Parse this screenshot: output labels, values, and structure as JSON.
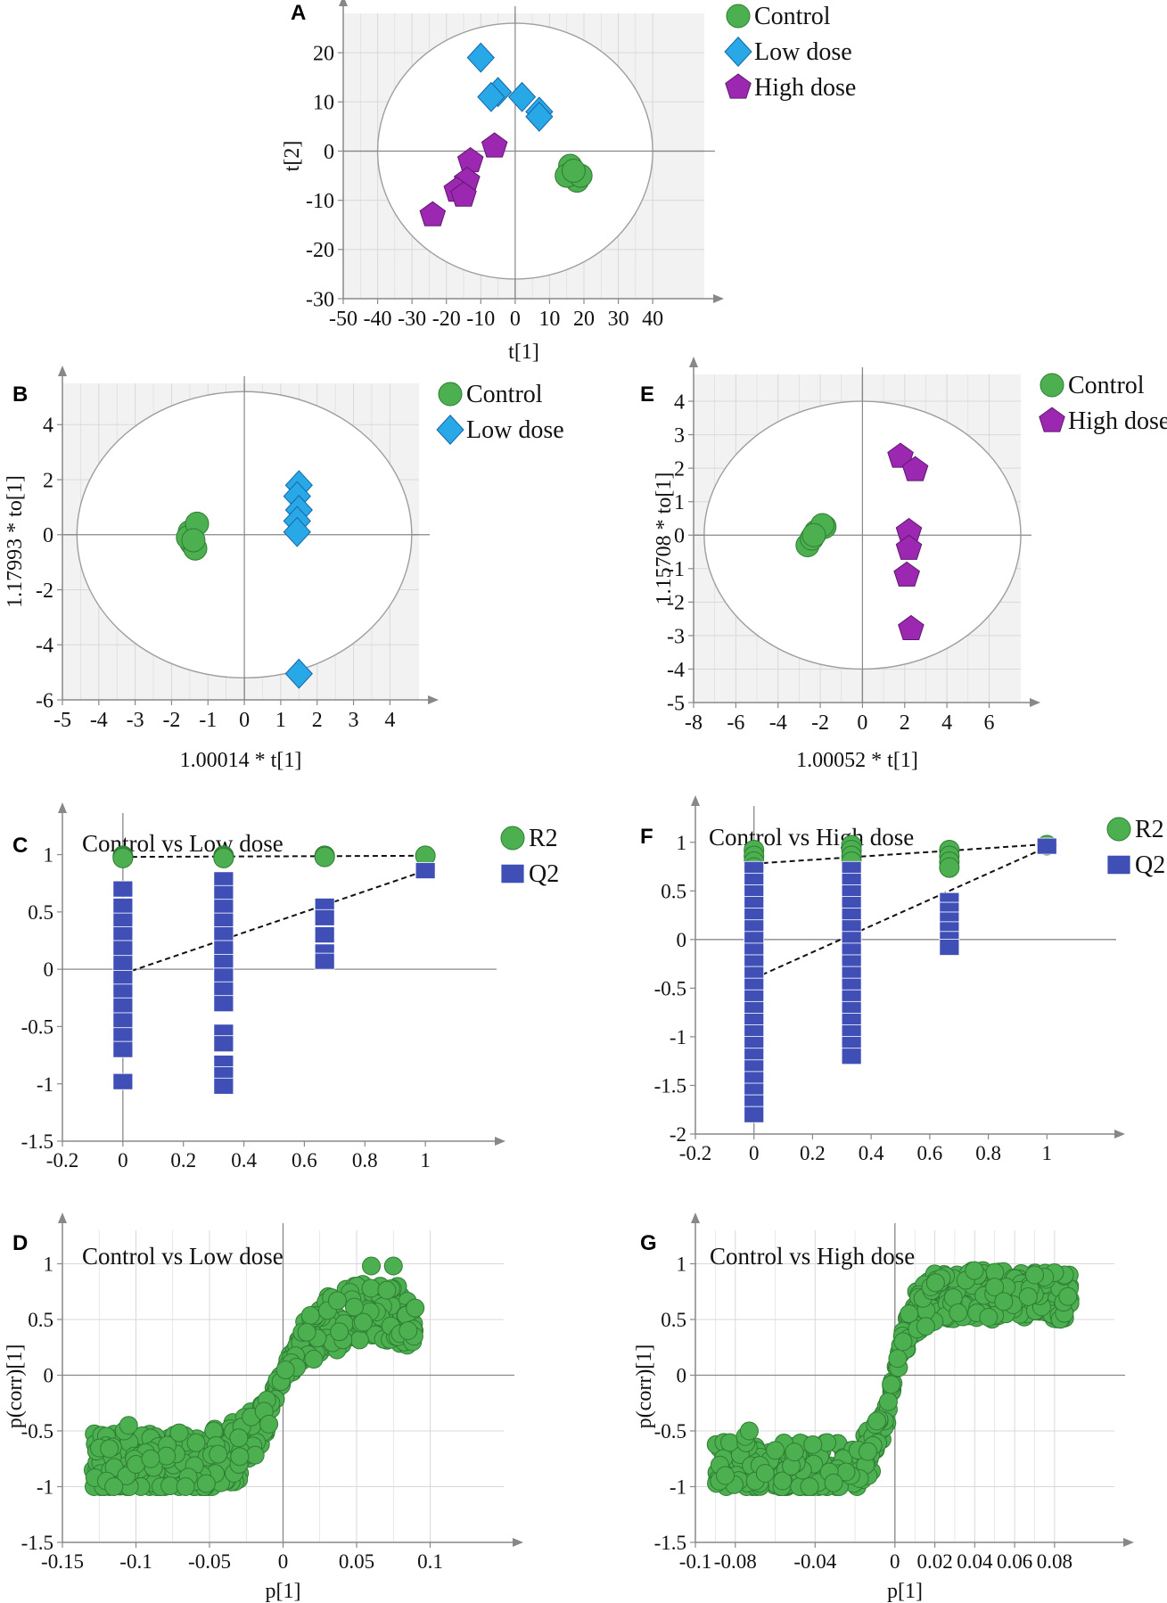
{
  "colors": {
    "control": "#4caf50",
    "control_stroke": "#2e7d32",
    "low": "#29a8e8",
    "low_stroke": "#1565a8",
    "high": "#9c27b0",
    "high_stroke": "#5e1a6e",
    "r2": "#4caf50",
    "q2": "#3f4fb5",
    "q2_stroke": "#28307a",
    "grid": "#d9d9d9",
    "bg": "#f2f2f2",
    "axis": "#888888",
    "ellipse": "#9e9e9e"
  },
  "chart_data": [
    {
      "id": "A",
      "type": "scatter",
      "letter": "A",
      "title": "",
      "xlabel": "t[1]",
      "ylabel": "t[2]",
      "xlim": [
        -50,
        55
      ],
      "ylim": [
        -30,
        28
      ],
      "xticks": [
        -50,
        -40,
        -30,
        -20,
        -10,
        0,
        10,
        20,
        30,
        40
      ],
      "yticks": [
        -30,
        -20,
        -10,
        0,
        10,
        20
      ],
      "ellipse": {
        "rx": 40,
        "ry": 26
      },
      "legend": [
        {
          "label": "Control",
          "marker": "circle",
          "color": "control"
        },
        {
          "label": "Low dose",
          "marker": "diamond",
          "color": "low"
        },
        {
          "label": "High dose",
          "marker": "pentagon",
          "color": "high"
        }
      ],
      "series": [
        {
          "name": "Control",
          "marker": "circle",
          "color": "control",
          "points": [
            [
              16,
              -3
            ],
            [
              17,
              -5
            ],
            [
              18,
              -6
            ],
            [
              15,
              -5
            ],
            [
              19,
              -5
            ],
            [
              17,
              -4
            ]
          ]
        },
        {
          "name": "Low dose",
          "marker": "diamond",
          "color": "low",
          "points": [
            [
              -10,
              19
            ],
            [
              -5,
              12
            ],
            [
              -7,
              11
            ],
            [
              2,
              11
            ],
            [
              7,
              8
            ],
            [
              7,
              7
            ]
          ]
        },
        {
          "name": "High dose",
          "marker": "pentagon",
          "color": "high",
          "points": [
            [
              -6,
              1
            ],
            [
              -13,
              -2
            ],
            [
              -14,
              -6
            ],
            [
              -17,
              -8
            ],
            [
              -15,
              -9
            ],
            [
              -24,
              -13
            ]
          ]
        }
      ]
    },
    {
      "id": "B",
      "type": "scatter",
      "letter": "B",
      "title": "",
      "xlabel": "1.00014 * t[1]",
      "ylabel": "1.17993 * to[1]",
      "xlim": [
        -5,
        4.8
      ],
      "ylim": [
        -6,
        5.5
      ],
      "xticks": [
        -5,
        -4,
        -3,
        -2,
        -1,
        0,
        1,
        2,
        3,
        4
      ],
      "yticks": [
        -6,
        -4,
        -2,
        0,
        2,
        4
      ],
      "ellipse": {
        "rx": 4.6,
        "ry": 5.2
      },
      "legend": [
        {
          "label": "Control",
          "marker": "circle",
          "color": "control"
        },
        {
          "label": "Low dose",
          "marker": "diamond",
          "color": "low"
        }
      ],
      "series": [
        {
          "name": "Control",
          "marker": "circle",
          "color": "control",
          "points": [
            [
              -1.45,
              -0.3
            ],
            [
              -1.5,
              0.1
            ],
            [
              -1.35,
              -0.5
            ],
            [
              -1.55,
              -0.1
            ],
            [
              -1.3,
              0.4
            ],
            [
              -1.4,
              -0.2
            ]
          ]
        },
        {
          "name": "Low dose",
          "marker": "diamond",
          "color": "low",
          "points": [
            [
              1.5,
              1.8
            ],
            [
              1.45,
              1.4
            ],
            [
              1.5,
              0.9
            ],
            [
              1.45,
              0.5
            ],
            [
              1.45,
              0.1
            ],
            [
              1.5,
              -5.05
            ]
          ]
        }
      ]
    },
    {
      "id": "E",
      "type": "scatter",
      "letter": "E",
      "title": "",
      "xlabel": "1.00052 * t[1]",
      "ylabel": "1.15708 * to[1]",
      "xlim": [
        -8,
        7.5
      ],
      "ylim": [
        -5,
        4.8
      ],
      "xticks": [
        -8,
        -6,
        -4,
        -2,
        0,
        2,
        4,
        6
      ],
      "yticks": [
        -5,
        -4,
        -3,
        -2,
        -1,
        0,
        1,
        2,
        3,
        4
      ],
      "ellipse": {
        "rx": 7.5,
        "ry": 4.0
      },
      "legend": [
        {
          "label": "Control",
          "marker": "circle",
          "color": "control"
        },
        {
          "label": "High dose",
          "marker": "pentagon",
          "color": "high"
        }
      ],
      "series": [
        {
          "name": "Control",
          "marker": "circle",
          "color": "control",
          "points": [
            [
              -2.6,
              -0.3
            ],
            [
              -2.2,
              0.1
            ],
            [
              -1.8,
              0.25
            ],
            [
              -2.4,
              -0.1
            ],
            [
              -1.9,
              0.3
            ],
            [
              -2.3,
              0.0
            ]
          ]
        },
        {
          "name": "High dose",
          "marker": "pentagon",
          "color": "high",
          "points": [
            [
              1.8,
              2.35
            ],
            [
              2.5,
              1.95
            ],
            [
              2.2,
              0.1
            ],
            [
              2.2,
              -0.4
            ],
            [
              2.1,
              -1.2
            ],
            [
              2.3,
              -2.8
            ]
          ]
        }
      ]
    },
    {
      "id": "C",
      "type": "scatter",
      "letter": "C",
      "title": "Control vs Low dose",
      "xlabel": "",
      "ylabel": "",
      "xlim": [
        -0.2,
        1.2
      ],
      "ylim": [
        -1.5,
        1.3
      ],
      "xticks": [
        -0.2,
        0,
        0.2,
        0.4,
        0.6,
        0.8,
        1
      ],
      "yticks": [
        -1.5,
        -1,
        -0.5,
        0,
        0.5,
        1
      ],
      "legend": [
        {
          "label": "R2",
          "marker": "circle",
          "color": "r2"
        },
        {
          "label": "Q2",
          "marker": "square",
          "color": "q2"
        }
      ],
      "series": [
        {
          "name": "R2",
          "marker": "circle",
          "color": "r2",
          "points": [
            [
              0,
              0.99
            ],
            [
              0,
              0.98
            ],
            [
              0,
              0.97
            ],
            [
              0.333,
              0.99
            ],
            [
              0.333,
              0.98
            ],
            [
              0.333,
              0.97
            ],
            [
              0.667,
              0.99
            ],
            [
              0.667,
              0.98
            ],
            [
              1,
              0.99
            ]
          ]
        },
        {
          "name": "Q2",
          "marker": "square",
          "color": "q2",
          "points": [
            [
              0,
              0.7
            ],
            [
              0,
              0.55
            ],
            [
              0,
              0.42
            ],
            [
              0,
              0.3
            ],
            [
              0,
              0.18
            ],
            [
              0,
              0.05
            ],
            [
              0,
              -0.08
            ],
            [
              0,
              -0.2
            ],
            [
              0,
              -0.32
            ],
            [
              0,
              -0.45
            ],
            [
              0,
              -0.58
            ],
            [
              0,
              -0.7
            ],
            [
              0,
              -0.98
            ],
            [
              0.333,
              0.78
            ],
            [
              0.333,
              0.66
            ],
            [
              0.333,
              0.54
            ],
            [
              0.333,
              0.42
            ],
            [
              0.333,
              0.3
            ],
            [
              0.333,
              0.18
            ],
            [
              0.333,
              0.06
            ],
            [
              0.333,
              -0.06
            ],
            [
              0.333,
              -0.18
            ],
            [
              0.333,
              -0.3
            ],
            [
              0.333,
              -0.55
            ],
            [
              0.333,
              -0.65
            ],
            [
              0.333,
              -0.82
            ],
            [
              0.333,
              -0.92
            ],
            [
              0.333,
              -1.02
            ],
            [
              0.667,
              0.55
            ],
            [
              0.667,
              0.45
            ],
            [
              0.667,
              0.3
            ],
            [
              0.667,
              0.15
            ],
            [
              0.667,
              0.07
            ],
            [
              1,
              0.86
            ]
          ]
        }
      ],
      "lines": [
        {
          "name": "R2 regression",
          "from": [
            0,
            0.98
          ],
          "to": [
            1,
            0.99
          ]
        },
        {
          "name": "Q2 regression",
          "from": [
            0,
            -0.04
          ],
          "to": [
            1,
            0.86
          ]
        }
      ]
    },
    {
      "id": "F",
      "type": "scatter",
      "letter": "F",
      "title": "Control vs High dose",
      "xlabel": "",
      "ylabel": "",
      "xlim": [
        -0.2,
        1.2
      ],
      "ylim": [
        -2,
        1.3
      ],
      "xticks": [
        -0.2,
        0,
        0.2,
        0.4,
        0.6,
        0.8,
        1
      ],
      "yticks": [
        -2,
        -1.5,
        -1,
        -0.5,
        0,
        0.5,
        1
      ],
      "legend": [
        {
          "label": "R2",
          "marker": "circle",
          "color": "r2"
        },
        {
          "label": "Q2",
          "marker": "square",
          "color": "q2"
        }
      ],
      "series": [
        {
          "name": "R2",
          "marker": "circle",
          "color": "r2",
          "points": [
            [
              0,
              0.92
            ],
            [
              0,
              0.86
            ],
            [
              0,
              0.8
            ],
            [
              0,
              0.74
            ],
            [
              0.333,
              0.97
            ],
            [
              0.333,
              0.92
            ],
            [
              0.333,
              0.86
            ],
            [
              0.333,
              0.8
            ],
            [
              0.667,
              0.92
            ],
            [
              0.667,
              0.86
            ],
            [
              0.667,
              0.8
            ],
            [
              0.667,
              0.74
            ],
            [
              1,
              0.97
            ]
          ]
        },
        {
          "name": "Q2",
          "marker": "square",
          "color": "q2",
          "points": [
            [
              0,
              0.72
            ],
            [
              0,
              0.6
            ],
            [
              0,
              0.48
            ],
            [
              0,
              0.36
            ],
            [
              0,
              0.24
            ],
            [
              0,
              0.12
            ],
            [
              0,
              0.0
            ],
            [
              0,
              -0.12
            ],
            [
              0,
              -0.24
            ],
            [
              0,
              -0.36
            ],
            [
              0,
              -0.48
            ],
            [
              0,
              -0.6
            ],
            [
              0,
              -0.72
            ],
            [
              0,
              -0.84
            ],
            [
              0,
              -0.96
            ],
            [
              0,
              -1.08
            ],
            [
              0,
              -1.2
            ],
            [
              0,
              -1.32
            ],
            [
              0,
              -1.44
            ],
            [
              0,
              -1.56
            ],
            [
              0,
              -1.68
            ],
            [
              0,
              -1.8
            ],
            [
              0.333,
              0.72
            ],
            [
              0.333,
              0.6
            ],
            [
              0.333,
              0.48
            ],
            [
              0.333,
              0.36
            ],
            [
              0.333,
              0.24
            ],
            [
              0.333,
              0.12
            ],
            [
              0.333,
              0.0
            ],
            [
              0.333,
              -0.12
            ],
            [
              0.333,
              -0.24
            ],
            [
              0.333,
              -0.36
            ],
            [
              0.333,
              -0.48
            ],
            [
              0.333,
              -0.6
            ],
            [
              0.333,
              -0.72
            ],
            [
              0.333,
              -0.84
            ],
            [
              0.333,
              -0.96
            ],
            [
              0.333,
              -1.08
            ],
            [
              0.333,
              -1.2
            ],
            [
              0.667,
              0.4
            ],
            [
              0.667,
              0.3
            ],
            [
              0.667,
              0.2
            ],
            [
              0.667,
              0.1
            ],
            [
              0.667,
              0.0
            ],
            [
              0.667,
              -0.08
            ],
            [
              1,
              0.96
            ]
          ]
        }
      ],
      "lines": [
        {
          "name": "R2 regression",
          "from": [
            0,
            0.78
          ],
          "to": [
            1,
            0.98
          ]
        },
        {
          "name": "Q2 regression",
          "from": [
            0,
            -0.4
          ],
          "to": [
            1,
            0.95
          ]
        }
      ]
    },
    {
      "id": "D",
      "type": "scatter",
      "letter": "D",
      "title": "Control vs  Low dose",
      "xlabel": "p[1]",
      "ylabel": "p(corr)[1]",
      "xlim": [
        -0.15,
        0.15
      ],
      "ylim": [
        -1.5,
        1.3
      ],
      "xticks": [
        -0.15,
        -0.1,
        -0.05,
        0,
        0.05,
        0.1
      ],
      "yticks": [
        -1.5,
        -1,
        -0.5,
        0,
        0.5,
        1
      ],
      "legend": [],
      "cloud": {
        "xmin": -0.13,
        "xmax": 0.09,
        "xscale": 0.025,
        "steep": 1.0,
        "hiY": 0.55,
        "loY": -0.8,
        "spread": 0.28,
        "n": 420,
        "seed": 7
      },
      "series": [
        {
          "name": "Metabolites",
          "marker": "circle",
          "color": "control",
          "points": [
            [
              -0.128,
              -0.92
            ],
            [
              -0.12,
              -0.95
            ],
            [
              -0.115,
              -1.0
            ],
            [
              -0.108,
              -0.5
            ],
            [
              -0.105,
              -0.45
            ],
            [
              -0.1,
              -0.8
            ],
            [
              -0.09,
              -0.75
            ],
            [
              0.06,
              0.98
            ],
            [
              0.075,
              0.98
            ],
            [
              0.088,
              0.3
            ],
            [
              0.089,
              0.35
            ],
            [
              0.085,
              0.4
            ]
          ]
        }
      ]
    },
    {
      "id": "G",
      "type": "scatter",
      "letter": "G",
      "title": "Control vs High dose",
      "xlabel": "p[1]",
      "ylabel": "p(corr)[1]",
      "xlim": [
        -0.1,
        0.11
      ],
      "ylim": [
        -1.5,
        1.3
      ],
      "xticks": [
        -0.1,
        -0.08,
        -0.04,
        0,
        0.02,
        0.04,
        0.06,
        0.08
      ],
      "ytickLabels": true,
      "yticks": [
        -1.5,
        -1,
        -0.5,
        0,
        0.5,
        1
      ],
      "legend": [],
      "cloud": {
        "xmin": -0.09,
        "xmax": 0.088,
        "xscale": 0.01,
        "steep": 1.0,
        "hiY": 0.72,
        "loY": -0.82,
        "spread": 0.22,
        "n": 520,
        "seed": 13
      },
      "series": [
        {
          "name": "Metabolites",
          "marker": "circle",
          "color": "control",
          "points": [
            [
              -0.088,
              -0.95
            ],
            [
              -0.085,
              -0.9
            ],
            [
              -0.075,
              -0.55
            ],
            [
              -0.073,
              -0.5
            ],
            [
              -0.07,
              -0.95
            ],
            [
              -0.065,
              -0.88
            ],
            [
              0.085,
              0.9
            ],
            [
              0.08,
              0.92
            ],
            [
              0.075,
              0.88
            ],
            [
              0.07,
              0.9
            ]
          ]
        }
      ]
    }
  ]
}
